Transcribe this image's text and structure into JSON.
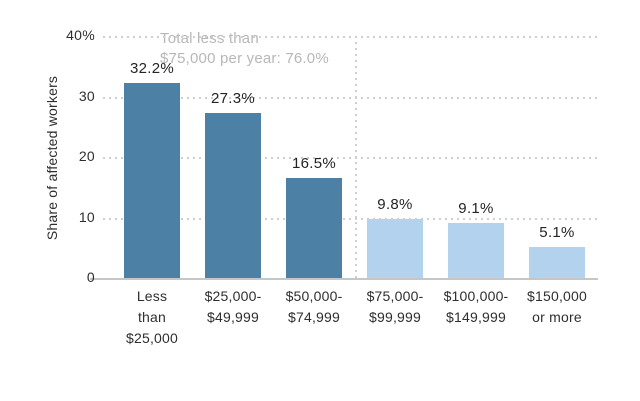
{
  "chart_data": {
    "type": "bar",
    "title": "",
    "xlabel": "",
    "ylabel": "Share of affected workers",
    "ylim": [
      0,
      40
    ],
    "grid": "horizontal dotted",
    "legend": "none",
    "yticks": [
      {
        "value": 40,
        "label": "40%"
      },
      {
        "value": 30,
        "label": "30"
      },
      {
        "value": 20,
        "label": "20"
      },
      {
        "value": 10,
        "label": "10"
      },
      {
        "value": 0,
        "label": "0"
      }
    ],
    "categories": [
      "Less\nthan\n$25,000",
      "$25,000-\n$49,999",
      "$50,000-\n$74,999",
      "$75,000-\n$99,999",
      "$100,000-\n$149,999",
      "$150,000\nor more"
    ],
    "values": [
      32.2,
      27.3,
      16.5,
      9.8,
      9.1,
      5.1
    ],
    "bar_labels": [
      "32.2%",
      "27.3%",
      "16.5%",
      "9.8%",
      "9.1%",
      "5.1%"
    ],
    "groups": [
      "below_75k",
      "below_75k",
      "below_75k",
      "above_75k",
      "above_75k",
      "above_75k"
    ],
    "group_colors": {
      "below_75k": "#4C80A5",
      "above_75k": "#B2D2EE"
    },
    "separator_after_index": 2,
    "annotation": "Total less than\n$75,000 per year: 76.0%"
  }
}
